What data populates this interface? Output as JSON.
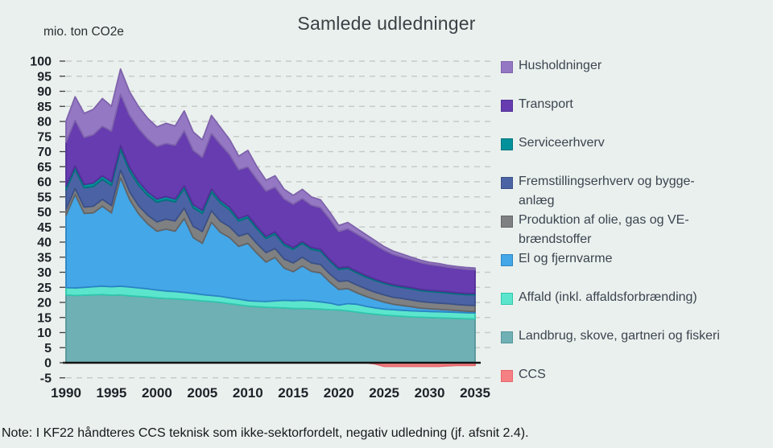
{
  "title": "Samlede udledninger",
  "unit_label": "mio. ton CO2e",
  "note": "Note: I KF22 håndteres CCS teknisk som ikke-sektorfordelt, negativ udledning (jf. afsnit 2.4).",
  "colors": {
    "background": "#eaf0ed",
    "gridline": "#c6cbc8",
    "axis_line": "#141414",
    "tick_mark": "#3c3c3c",
    "tick_label": "#1d2128",
    "legend_text": "#3c4450"
  },
  "chart_data": {
    "type": "area",
    "stacked": true,
    "grid": "dashed-horizontal",
    "legend_position": "right",
    "xlabel": "",
    "ylabel": "mio. ton CO2e",
    "ylim": [
      -5,
      100
    ],
    "y_tick_step": 5,
    "y_ticks": [
      -5,
      0,
      5,
      10,
      15,
      20,
      25,
      30,
      35,
      40,
      45,
      50,
      55,
      60,
      65,
      70,
      75,
      80,
      85,
      90,
      95,
      100
    ],
    "x_ticks": [
      1990,
      1995,
      2000,
      2005,
      2010,
      2015,
      2020,
      2025,
      2030,
      2035
    ],
    "x": [
      1990,
      1991,
      1992,
      1993,
      1994,
      1995,
      1996,
      1997,
      1998,
      1999,
      2000,
      2001,
      2002,
      2003,
      2004,
      2005,
      2006,
      2007,
      2008,
      2009,
      2010,
      2011,
      2012,
      2013,
      2014,
      2015,
      2016,
      2017,
      2018,
      2019,
      2020,
      2021,
      2022,
      2023,
      2024,
      2025,
      2026,
      2027,
      2028,
      2029,
      2030,
      2031,
      2032,
      2033,
      2034,
      2035
    ],
    "legend_order": [
      "Husholdninger",
      "Transport",
      "Serviceerhverv",
      "Fremstillingserhverv og byggeanlæg",
      "Produktion af olie, gas og VE-brændstoffer",
      "El og fjernvarme",
      "Affald (inkl. affaldsforbrænding)",
      "Landbrug, skove, gartneri og fiskeri",
      "CCS"
    ],
    "series": [
      {
        "name": "Landbrug, skove, gartneri og fiskeri",
        "legend_lines": [
          "Landbrug, skove, gartneri og fiskeri"
        ],
        "color": "#6fb0b5",
        "edge": "#55959b",
        "values": [
          22.5,
          22.3,
          22.4,
          22.5,
          22.6,
          22.4,
          22.5,
          22.2,
          22.0,
          21.8,
          21.5,
          21.3,
          21.2,
          21.0,
          20.8,
          20.5,
          20.3,
          20.0,
          19.6,
          19.2,
          18.8,
          18.6,
          18.4,
          18.3,
          18.2,
          18.0,
          18.0,
          17.9,
          17.8,
          17.6,
          17.5,
          17.2,
          16.8,
          16.4,
          16.1,
          15.8,
          15.6,
          15.4,
          15.2,
          15.1,
          15.0,
          14.9,
          14.8,
          14.7,
          14.6,
          14.5
        ]
      },
      {
        "name": "Affald (inkl. affaldsforbrænding)",
        "legend_lines": [
          "Affald (inkl. affaldsforbrænding)"
        ],
        "color": "#5ce5cd",
        "edge": "#2fc7ae",
        "values": [
          2.4,
          2.5,
          2.6,
          2.7,
          2.8,
          2.8,
          2.9,
          2.9,
          2.8,
          2.7,
          2.6,
          2.5,
          2.4,
          2.3,
          2.2,
          2.1,
          2.0,
          2.0,
          1.9,
          1.9,
          1.8,
          1.8,
          1.9,
          2.2,
          2.5,
          2.6,
          2.7,
          2.6,
          2.4,
          2.2,
          1.6,
          2.4,
          2.6,
          2.3,
          2.1,
          2.0,
          2.0,
          2.0,
          2.0,
          2.0,
          2.0,
          2.0,
          2.0,
          2.0,
          2.0,
          2.0
        ]
      },
      {
        "name": "El og fjernvarme",
        "legend_lines": [
          "El og fjernvarme"
        ],
        "color": "#43a7e8",
        "edge": "#2b84c4",
        "values": [
          24.0,
          31.0,
          24.5,
          24.5,
          26.5,
          24.5,
          36.0,
          29.0,
          24.5,
          21.5,
          19.5,
          20.5,
          20.0,
          24.5,
          18.5,
          17.0,
          24.3,
          21.2,
          20.0,
          17.5,
          19.0,
          15.9,
          13.1,
          14.4,
          10.7,
          9.6,
          11.4,
          9.8,
          9.6,
          7.0,
          5.2,
          5.0,
          3.8,
          3.3,
          2.8,
          2.3,
          1.8,
          1.6,
          1.4,
          1.0,
          0.9,
          0.8,
          0.7,
          0.6,
          0.5,
          0.5
        ]
      },
      {
        "name": "Produktion af olie, gas og VE-brændstoffer",
        "legend_lines": [
          "Produktion af olie, gas og VE-",
          "brændstoffer"
        ],
        "color": "#7f8082",
        "edge": "#636466",
        "values": [
          2.0,
          2.0,
          2.1,
          2.2,
          2.3,
          2.4,
          2.5,
          2.6,
          2.7,
          2.9,
          3.1,
          3.3,
          3.4,
          3.5,
          3.7,
          3.9,
          3.8,
          3.7,
          3.6,
          3.4,
          3.3,
          3.2,
          3.1,
          3.0,
          3.0,
          2.9,
          2.9,
          2.8,
          2.8,
          2.7,
          2.7,
          2.6,
          2.6,
          2.5,
          2.4,
          2.4,
          2.3,
          2.3,
          2.2,
          2.2,
          2.1,
          2.1,
          2.1,
          2.0,
          2.0,
          2.0
        ]
      },
      {
        "name": "Fremstillingserhverv og byggeanlæg",
        "legend_lines": [
          "Fremstillingserhverv og bygge-",
          "anlæg"
        ],
        "color": "#4b63a4",
        "edge": "#3a5089",
        "values": [
          6.5,
          6.3,
          6.4,
          6.5,
          6.6,
          6.7,
          6.8,
          6.9,
          6.8,
          6.6,
          6.5,
          6.4,
          6.3,
          6.4,
          6.2,
          6.0,
          6.2,
          6.0,
          5.6,
          5.0,
          5.2,
          4.9,
          4.7,
          4.8,
          4.6,
          4.5,
          4.6,
          4.5,
          4.4,
          4.3,
          4.0,
          4.1,
          4.0,
          3.9,
          3.9,
          3.8,
          3.8,
          3.7,
          3.7,
          3.6,
          3.6,
          3.6,
          3.5,
          3.5,
          3.5,
          3.5
        ]
      },
      {
        "name": "Serviceerhverv",
        "legend_lines": [
          "Serviceerhverv"
        ],
        "color": "#00919b",
        "edge": "#00737d",
        "values": [
          1.2,
          1.1,
          1.1,
          1.2,
          1.2,
          1.2,
          1.3,
          1.2,
          1.2,
          1.1,
          1.1,
          1.1,
          1.0,
          1.0,
          1.0,
          1.0,
          1.0,
          0.9,
          0.9,
          0.8,
          0.8,
          0.8,
          0.7,
          0.7,
          0.7,
          0.6,
          0.6,
          0.6,
          0.6,
          0.5,
          0.5,
          0.5,
          0.5,
          0.5,
          0.4,
          0.4,
          0.4,
          0.4,
          0.4,
          0.4,
          0.4,
          0.4,
          0.4,
          0.4,
          0.4,
          0.4
        ]
      },
      {
        "name": "Transport",
        "legend_lines": [
          "Transport"
        ],
        "color": "#663cb0",
        "edge": "#512f96",
        "values": [
          14.5,
          15.2,
          15.6,
          16.0,
          16.4,
          16.8,
          17.0,
          17.2,
          17.6,
          17.6,
          17.4,
          17.6,
          17.8,
          18.2,
          18.0,
          17.6,
          18.4,
          18.6,
          17.4,
          16.2,
          16.0,
          15.6,
          15.0,
          14.8,
          14.6,
          14.4,
          14.2,
          14.0,
          13.8,
          13.4,
          12.0,
          12.6,
          12.4,
          12.0,
          11.4,
          10.6,
          10.0,
          9.6,
          9.2,
          8.9,
          8.6,
          8.4,
          8.2,
          8.1,
          8.0,
          7.9
        ]
      },
      {
        "name": "Husholdninger",
        "legend_lines": [
          "Husholdninger"
        ],
        "color": "#9478c4",
        "edge": "#7e62ab",
        "values": [
          7.0,
          7.8,
          8.0,
          8.4,
          9.2,
          8.2,
          8.4,
          7.8,
          7.2,
          6.8,
          6.5,
          6.7,
          6.4,
          6.6,
          6.1,
          5.8,
          6.0,
          5.6,
          5.0,
          4.5,
          5.5,
          4.2,
          3.6,
          3.8,
          3.2,
          2.9,
          3.1,
          2.8,
          2.6,
          2.3,
          2.0,
          2.1,
          1.8,
          1.6,
          1.4,
          1.2,
          1.1,
          1.0,
          0.9,
          0.8,
          0.7,
          0.7,
          0.6,
          0.6,
          0.6,
          0.6
        ]
      },
      {
        "name": "CCS",
        "legend_lines": [
          "CCS"
        ],
        "negative": true,
        "color": "#f58084",
        "edge": "#e8666c",
        "values": [
          0,
          0,
          0,
          0,
          0,
          0,
          0,
          0,
          0,
          0,
          0,
          0,
          0,
          0,
          0,
          0,
          0,
          0,
          0,
          0,
          0,
          0,
          0,
          0,
          0,
          0,
          0,
          0,
          0,
          0,
          0,
          0,
          0,
          0,
          -0.4,
          -1.2,
          -1.2,
          -1.2,
          -1.2,
          -1.2,
          -1.2,
          -1.2,
          -1.0,
          -0.9,
          -0.9,
          -0.9
        ]
      }
    ]
  }
}
